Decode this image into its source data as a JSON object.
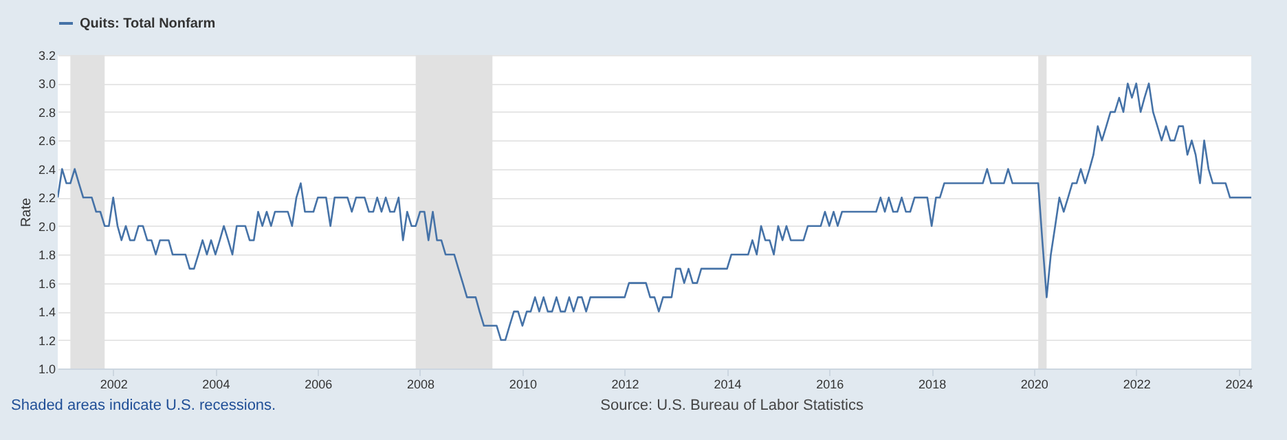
{
  "chart_data": {
    "type": "line",
    "ylabel": "Rate",
    "legend": "top left",
    "grid": "y",
    "annotations": [
      "Shaded areas indicate U.S. recessions.",
      "Source: U.S. Bureau of Labor Statistics"
    ],
    "xlim": [
      "2000-12",
      "2024-04"
    ],
    "xticks": [
      "2002",
      "2004",
      "2006",
      "2008",
      "2010",
      "2012",
      "2014",
      "2016",
      "2018",
      "2020",
      "2022",
      "2024"
    ],
    "ylim": [
      1.0,
      3.2
    ],
    "yticks": [
      {
        "value": 1,
        "label": "1.0"
      },
      1.2,
      1.4,
      1.6,
      1.8,
      {
        "value": 2,
        "label": "2.0"
      },
      2.2,
      2.4,
      2.6,
      2.8,
      {
        "value": 3,
        "label": "3.0"
      },
      3.2
    ],
    "bands": [
      {
        "axis": "x",
        "from": "2001-03",
        "to": "2001-11",
        "color": "#e1e1e1"
      },
      {
        "axis": "x",
        "from": "2007-12",
        "to": "2009-06",
        "color": "#e1e1e1"
      },
      {
        "axis": "x",
        "from": "2020-02",
        "to": "2020-04",
        "color": "#e1e1e1"
      }
    ],
    "series": [
      {
        "name": "Quits: Total Nonfarm",
        "color": "#4572a7",
        "x": [
          "2000-12",
          "2001-01",
          "2001-02",
          "2001-03",
          "2001-04",
          "2001-05",
          "2001-06",
          "2001-07",
          "2001-08",
          "2001-09",
          "2001-10",
          "2001-11",
          "2001-12",
          "2002-01",
          "2002-02",
          "2002-03",
          "2002-04",
          "2002-05",
          "2002-06",
          "2002-07",
          "2002-08",
          "2002-09",
          "2002-10",
          "2002-11",
          "2002-12",
          "2003-01",
          "2003-02",
          "2003-03",
          "2003-06",
          "2003-07",
          "2003-08",
          "2003-09",
          "2003-10",
          "2003-11",
          "2003-12",
          "2004-01",
          "2004-02",
          "2004-03",
          "2004-04",
          "2004-05",
          "2004-06",
          "2004-08",
          "2004-09",
          "2004-10",
          "2004-11",
          "2004-12",
          "2005-01",
          "2005-02",
          "2005-03",
          "2005-06",
          "2005-07",
          "2005-08",
          "2005-09",
          "2005-10",
          "2005-12",
          "2006-01",
          "2006-03",
          "2006-04",
          "2006-05",
          "2006-08",
          "2006-09",
          "2006-10",
          "2006-12",
          "2007-01",
          "2007-02",
          "2007-03",
          "2007-04",
          "2007-05",
          "2007-06",
          "2007-07",
          "2007-08",
          "2007-09",
          "2007-10",
          "2007-11",
          "2007-12",
          "2008-01",
          "2008-02",
          "2008-03",
          "2008-04",
          "2008-05",
          "2008-06",
          "2008-07",
          "2008-09",
          "2008-10",
          "2008-11",
          "2008-12",
          "2009-02",
          "2009-03",
          "2009-04",
          "2009-07",
          "2009-08",
          "2009-09",
          "2009-10",
          "2009-11",
          "2009-12",
          "2010-01",
          "2010-02",
          "2010-03",
          "2010-04",
          "2010-05",
          "2010-06",
          "2010-07",
          "2010-08",
          "2010-09",
          "2010-10",
          "2010-11",
          "2010-12",
          "2011-01",
          "2011-02",
          "2011-03",
          "2011-04",
          "2011-05",
          "2012-01",
          "2012-02",
          "2012-06",
          "2012-07",
          "2012-08",
          "2012-09",
          "2012-10",
          "2012-12",
          "2013-01",
          "2013-02",
          "2013-03",
          "2013-04",
          "2013-05",
          "2013-06",
          "2013-07",
          "2014-01",
          "2014-02",
          "2014-06",
          "2014-07",
          "2014-08",
          "2014-09",
          "2014-10",
          "2014-11",
          "2014-12",
          "2015-01",
          "2015-02",
          "2015-03",
          "2015-04",
          "2015-07",
          "2015-08",
          "2015-11",
          "2015-12",
          "2016-01",
          "2016-02",
          "2016-03",
          "2016-04",
          "2016-12",
          "2017-01",
          "2017-02",
          "2017-03",
          "2017-04",
          "2017-05",
          "2017-06",
          "2017-07",
          "2017-08",
          "2017-09",
          "2017-12",
          "2018-01",
          "2018-02",
          "2018-03",
          "2018-04",
          "2019-01",
          "2019-02",
          "2019-03",
          "2019-06",
          "2019-07",
          "2019-08",
          "2020-02",
          "2020-03",
          "2020-04",
          "2020-05",
          "2020-06",
          "2020-07",
          "2020-08",
          "2020-09",
          "2020-10",
          "2020-11",
          "2020-12",
          "2021-01",
          "2021-02",
          "2021-03",
          "2021-04",
          "2021-05",
          "2021-06",
          "2021-07",
          "2021-08",
          "2021-09",
          "2021-10",
          "2021-11",
          "2021-12",
          "2022-01",
          "2022-02",
          "2022-03",
          "2022-04",
          "2022-05",
          "2022-06",
          "2022-07",
          "2022-08",
          "2022-09",
          "2022-10",
          "2022-11",
          "2022-12",
          "2023-01",
          "2023-02",
          "2023-03",
          "2023-04",
          "2023-05",
          "2023-06",
          "2023-07",
          "2023-10",
          "2023-11",
          "2024-04"
        ],
        "values": [
          2.2,
          2.4,
          2.3,
          2.3,
          2.4,
          2.3,
          2.2,
          2.2,
          2.2,
          2.1,
          2.1,
          2.0,
          2.0,
          2.2,
          2.0,
          1.9,
          2.0,
          1.9,
          1.9,
          2.0,
          2.0,
          1.9,
          1.9,
          1.8,
          1.9,
          1.9,
          1.9,
          1.8,
          1.8,
          1.7,
          1.7,
          1.8,
          1.9,
          1.8,
          1.9,
          1.8,
          1.9,
          2.0,
          1.9,
          1.8,
          2.0,
          2.0,
          1.9,
          1.9,
          2.1,
          2.0,
          2.1,
          2.0,
          2.1,
          2.1,
          2.0,
          2.2,
          2.3,
          2.1,
          2.1,
          2.2,
          2.2,
          2.0,
          2.2,
          2.2,
          2.1,
          2.2,
          2.2,
          2.1,
          2.1,
          2.2,
          2.1,
          2.2,
          2.1,
          2.1,
          2.2,
          1.9,
          2.1,
          2.0,
          2.0,
          2.1,
          2.1,
          1.9,
          2.1,
          1.9,
          1.9,
          1.8,
          1.8,
          1.7,
          1.6,
          1.5,
          1.5,
          1.4,
          1.3,
          1.3,
          1.2,
          1.2,
          1.3,
          1.4,
          1.4,
          1.3,
          1.4,
          1.4,
          1.5,
          1.4,
          1.5,
          1.4,
          1.4,
          1.5,
          1.4,
          1.4,
          1.5,
          1.4,
          1.5,
          1.5,
          1.4,
          1.5,
          1.5,
          1.6,
          1.6,
          1.5,
          1.5,
          1.4,
          1.5,
          1.5,
          1.7,
          1.7,
          1.6,
          1.7,
          1.6,
          1.6,
          1.7,
          1.7,
          1.8,
          1.8,
          1.9,
          1.8,
          2.0,
          1.9,
          1.9,
          1.8,
          2.0,
          1.9,
          2.0,
          1.9,
          1.9,
          2.0,
          2.0,
          2.1,
          2.0,
          2.1,
          2.0,
          2.1,
          2.1,
          2.2,
          2.1,
          2.2,
          2.1,
          2.1,
          2.2,
          2.1,
          2.1,
          2.2,
          2.2,
          2.0,
          2.2,
          2.2,
          2.3,
          2.3,
          2.4,
          2.3,
          2.3,
          2.4,
          2.3,
          2.3,
          1.9,
          1.5,
          1.8,
          2.0,
          2.2,
          2.1,
          2.2,
          2.3,
          2.3,
          2.4,
          2.3,
          2.4,
          2.5,
          2.7,
          2.6,
          2.7,
          2.8,
          2.8,
          2.9,
          2.8,
          3.0,
          2.9,
          3.0,
          2.8,
          2.9,
          3.0,
          2.8,
          2.7,
          2.6,
          2.7,
          2.6,
          2.6,
          2.7,
          2.7,
          2.5,
          2.6,
          2.5,
          2.3,
          2.6,
          2.4,
          2.3,
          2.3,
          2.2,
          2.2
        ]
      }
    ]
  }
}
